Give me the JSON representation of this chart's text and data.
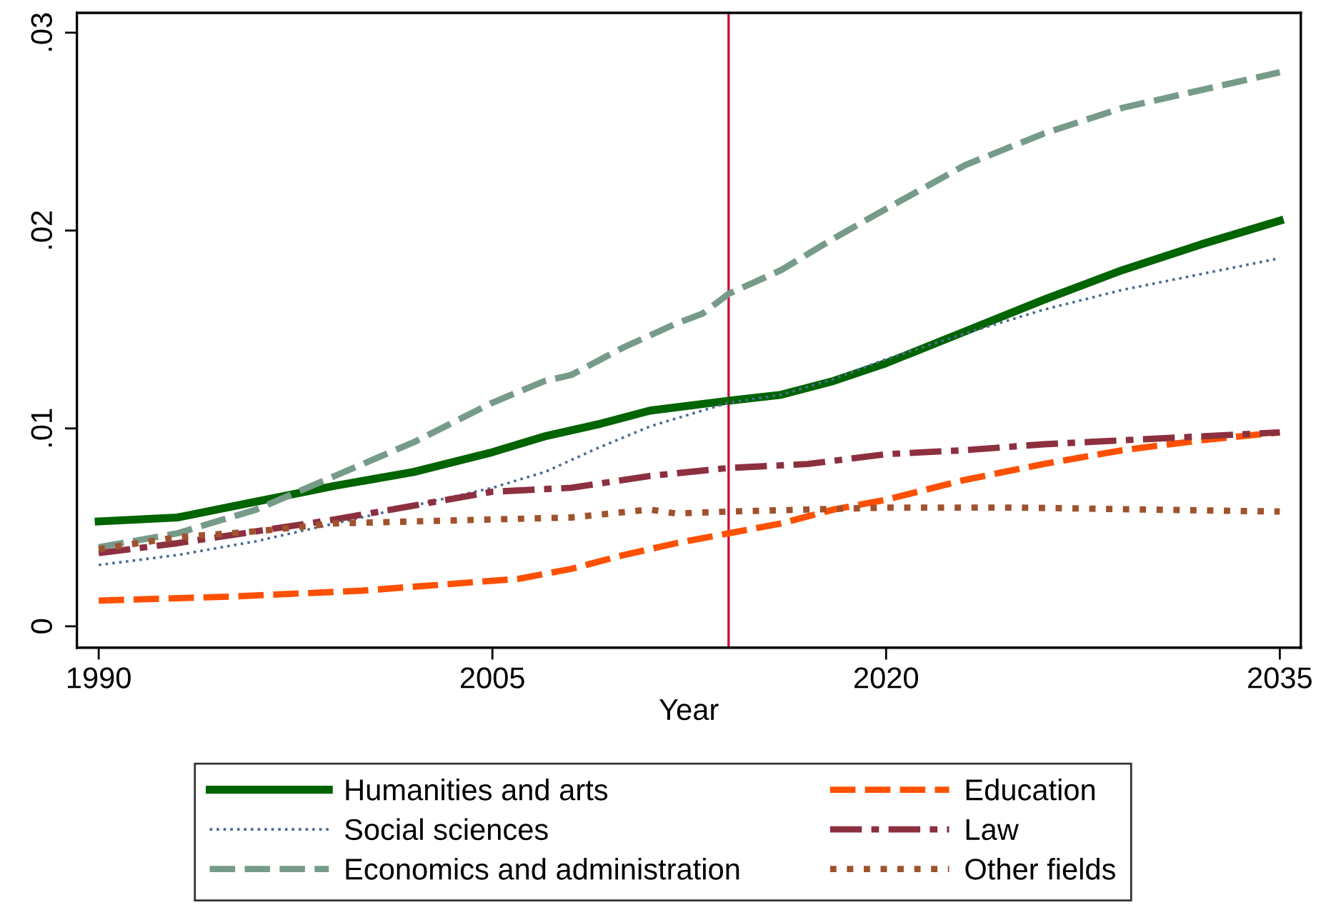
{
  "chart_data": {
    "type": "line",
    "xlabel": "Year",
    "xlim": [
      1989.17,
      2035.8
    ],
    "xticks": [
      1990,
      2005,
      2020,
      2035
    ],
    "ylim": [
      -0.00108,
      0.031
    ],
    "yticks": [
      0,
      {
        "value": 0.01,
        "label": ".01"
      },
      {
        "value": 0.02,
        "label": ".02"
      },
      {
        "value": 0.03,
        "label": ".03"
      }
    ],
    "grid": false,
    "legend": "bottom",
    "ref_lines": [
      {
        "axis": "x",
        "value": 2014,
        "color": "#c8103c"
      }
    ],
    "series": [
      {
        "name": "Humanities and arts",
        "color": "#006400",
        "line_style": "solid",
        "x": [
          1990,
          1993,
          1996,
          1999,
          2002,
          2005,
          2007,
          2009,
          2011,
          2014,
          2016,
          2018,
          2020,
          2023,
          2026,
          2029,
          2032,
          2035
        ],
        "values": [
          0.0053,
          0.0055,
          0.0063,
          0.0071,
          0.0078,
          0.0088,
          0.0096,
          0.0102,
          0.0109,
          0.0114,
          0.0117,
          0.0124,
          0.0133,
          0.0149,
          0.0165,
          0.018,
          0.0193,
          0.0205
        ]
      },
      {
        "name": "Social sciences",
        "color": "#4a6b94",
        "line_style": "dotted",
        "x": [
          1990,
          1993,
          1996,
          1999,
          2002,
          2005,
          2007,
          2009,
          2011,
          2013,
          2014,
          2016,
          2018,
          2020,
          2023,
          2026,
          2029,
          2032,
          2035
        ],
        "values": [
          0.0031,
          0.0036,
          0.0043,
          0.0052,
          0.0061,
          0.007,
          0.0078,
          0.009,
          0.0101,
          0.0109,
          0.0113,
          0.0117,
          0.0125,
          0.0135,
          0.0148,
          0.016,
          0.017,
          0.0178,
          0.0186
        ]
      },
      {
        "name": "Economics and administration",
        "color": "#779b89",
        "line_style": "dashed",
        "x": [
          1990,
          1993,
          1996,
          1999,
          2002,
          2005,
          2007,
          2008,
          2010,
          2012,
          2013,
          2014,
          2016,
          2018,
          2020,
          2023,
          2026,
          2029,
          2032,
          2035
        ],
        "values": [
          0.004,
          0.0047,
          0.0059,
          0.0076,
          0.0093,
          0.0113,
          0.0124,
          0.0127,
          0.0141,
          0.0153,
          0.0158,
          0.0168,
          0.018,
          0.0196,
          0.0211,
          0.0233,
          0.0249,
          0.0262,
          0.0271,
          0.028
        ]
      },
      {
        "name": "Education",
        "color": "#ff5000",
        "line_style": "dashed",
        "x": [
          1990,
          1995,
          2000,
          2004,
          2006,
          2008,
          2010,
          2012,
          2014,
          2016,
          2018,
          2020,
          2023,
          2026,
          2029,
          2032,
          2035
        ],
        "values": [
          0.0013,
          0.0015,
          0.0018,
          0.0022,
          0.0024,
          0.0029,
          0.0036,
          0.0042,
          0.0047,
          0.0052,
          0.0059,
          0.0064,
          0.0074,
          0.0082,
          0.0089,
          0.0094,
          0.0098
        ]
      },
      {
        "name": "Law",
        "color": "#8c3040",
        "line_style": "dashdot",
        "x": [
          1990,
          1993,
          1996,
          1999,
          2002,
          2005,
          2008,
          2011,
          2014,
          2017,
          2020,
          2023,
          2026,
          2029,
          2032,
          2035
        ],
        "values": [
          0.0037,
          0.0042,
          0.0048,
          0.0054,
          0.0061,
          0.0068,
          0.007,
          0.0076,
          0.008,
          0.0082,
          0.0087,
          0.0089,
          0.0092,
          0.0094,
          0.0096,
          0.0098
        ]
      },
      {
        "name": "Other fields",
        "color": "#a0522d",
        "line_style": "dotted",
        "x": [
          1990,
          1993,
          1996,
          1999,
          2002,
          2005,
          2008,
          2011,
          2012,
          2014,
          2017,
          2020,
          2025,
          2030,
          2035
        ],
        "values": [
          0.0039,
          0.0045,
          0.0048,
          0.0052,
          0.0053,
          0.0054,
          0.0055,
          0.0059,
          0.0057,
          0.0058,
          0.0059,
          0.006,
          0.006,
          0.0059,
          0.0058
        ]
      }
    ]
  }
}
